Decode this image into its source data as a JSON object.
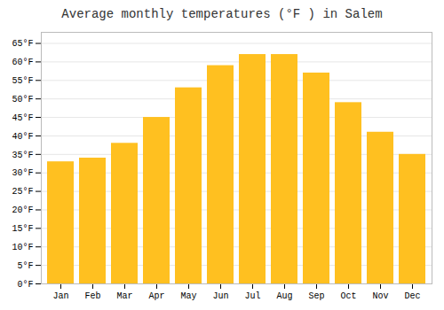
{
  "chart_data": {
    "type": "bar",
    "title": "Average monthly temperatures (°F ) in Salem",
    "categories": [
      "Jan",
      "Feb",
      "Mar",
      "Apr",
      "May",
      "Jun",
      "Jul",
      "Aug",
      "Sep",
      "Oct",
      "Nov",
      "Dec"
    ],
    "values": [
      33,
      34,
      38,
      45,
      53,
      59,
      62,
      62,
      57,
      49,
      41,
      35
    ],
    "color": "#FFC020",
    "ylim": [
      0,
      68
    ],
    "yticks": [
      {
        "value": 0,
        "label": "0°F"
      },
      {
        "value": 5,
        "label": "5°F"
      },
      {
        "value": 10,
        "label": "10°F"
      },
      {
        "value": 15,
        "label": "15°F"
      },
      {
        "value": 20,
        "label": "20°F"
      },
      {
        "value": 25,
        "label": "25°F"
      },
      {
        "value": 30,
        "label": "30°F"
      },
      {
        "value": 35,
        "label": "35°F"
      },
      {
        "value": 40,
        "label": "40°F"
      },
      {
        "value": 45,
        "label": "45°F"
      },
      {
        "value": 50,
        "label": "50°F"
      },
      {
        "value": 55,
        "label": "55°F"
      },
      {
        "value": 60,
        "label": "60°F"
      },
      {
        "value": 65,
        "label": "65°F"
      }
    ],
    "grid": true
  }
}
